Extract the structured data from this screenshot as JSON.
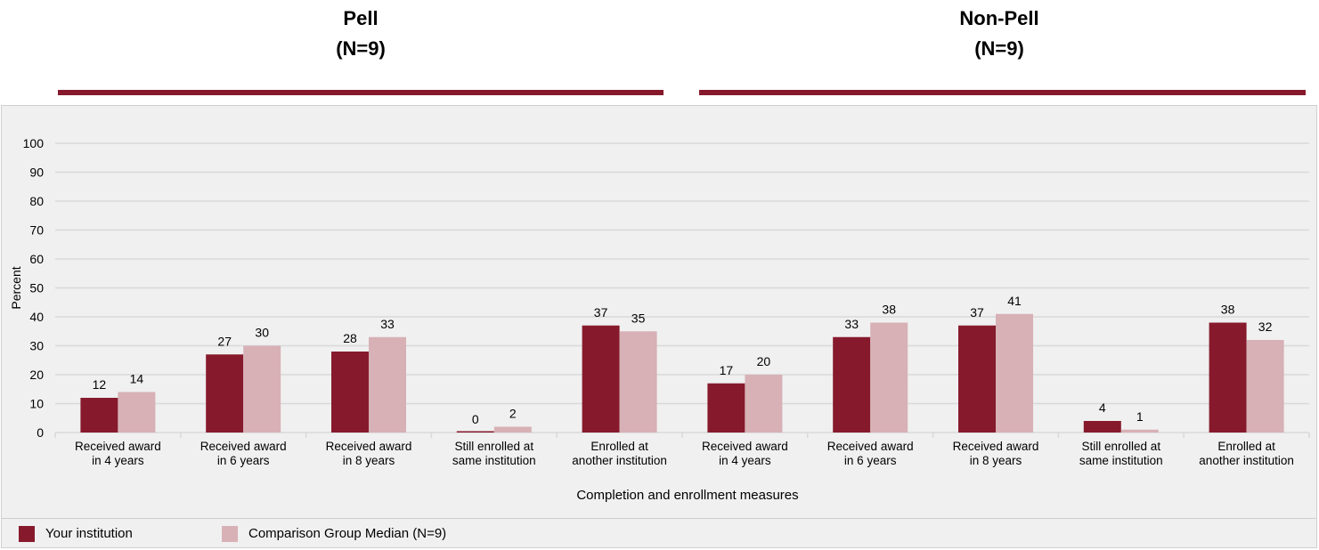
{
  "groups": [
    {
      "title": "Pell",
      "subtitle": "(N=9)"
    },
    {
      "title": "Non-Pell",
      "subtitle": "(N=9)"
    }
  ],
  "colors": {
    "accent": "#861a2c",
    "comparison": "#d7b1b6",
    "panel": "#f0f0f0",
    "grid": "#d9d9d9"
  },
  "legend": {
    "items": [
      {
        "label": "Your institution",
        "color": "#861a2c"
      },
      {
        "label": "Comparison Group Median (N=9)",
        "color": "#d7b1b6"
      }
    ]
  },
  "chart_data": {
    "type": "bar",
    "xlabel": "Completion and enrollment measures",
    "ylabel": "Percent",
    "ylim": [
      0,
      100
    ],
    "yticks": [
      0,
      10,
      20,
      30,
      40,
      50,
      60,
      70,
      80,
      90,
      100
    ],
    "grid": true,
    "legend_position": "bottom",
    "categories": [
      [
        "Received award",
        "in 4 years"
      ],
      [
        "Received award",
        "in 6 years"
      ],
      [
        "Received award",
        "in 8 years"
      ],
      [
        "Still enrolled at",
        "same institution"
      ],
      [
        "Enrolled at",
        "another institution"
      ],
      [
        "Received award",
        "in 4 years"
      ],
      [
        "Received award",
        "in 6 years"
      ],
      [
        "Received award",
        "in 8 years"
      ],
      [
        "Still enrolled at",
        "same institution"
      ],
      [
        "Enrolled at",
        "another institution"
      ]
    ],
    "series": [
      {
        "name": "Your institution",
        "color": "#861a2c",
        "values": [
          12,
          27,
          28,
          0,
          37,
          17,
          33,
          37,
          4,
          38
        ]
      },
      {
        "name": "Comparison Group Median (N=9)",
        "color": "#d7b1b6",
        "values": [
          14,
          30,
          33,
          2,
          35,
          20,
          38,
          41,
          1,
          32
        ]
      }
    ]
  }
}
